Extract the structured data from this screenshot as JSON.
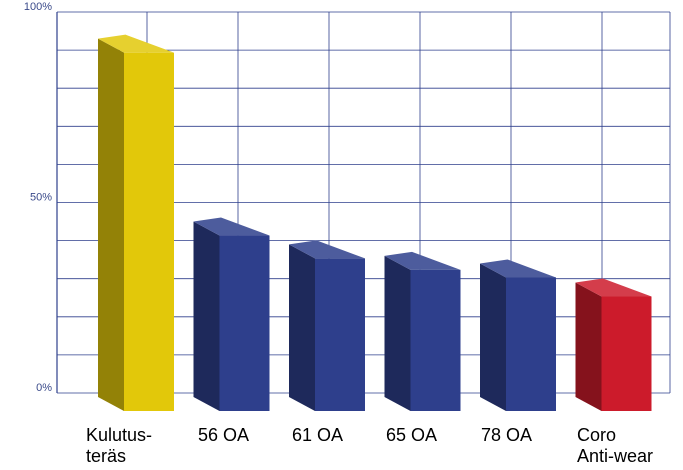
{
  "chart_data": {
    "type": "bar",
    "categories": [
      [
        "Kulutus-",
        "teräs"
      ],
      [
        "56 OA"
      ],
      [
        "61 OA"
      ],
      [
        "65 OA"
      ],
      [
        "78 OA"
      ],
      [
        "Coro",
        "Anti-wear"
      ]
    ],
    "values": [
      93,
      45,
      39,
      36,
      34,
      29
    ],
    "bar_colors": [
      "#e2c80a",
      "#2e3f8c",
      "#2e3f8c",
      "#2e3f8c",
      "#2e3f8c",
      "#cc1b2b"
    ],
    "y_tick_labels": [
      "0%",
      "50%",
      "100%"
    ],
    "y_tick_values": [
      0,
      50,
      100
    ],
    "ylim": [
      0,
      100
    ],
    "grid": true,
    "grid_color": "#2e3f8c",
    "title": "",
    "xlabel": "",
    "ylabel": ""
  }
}
